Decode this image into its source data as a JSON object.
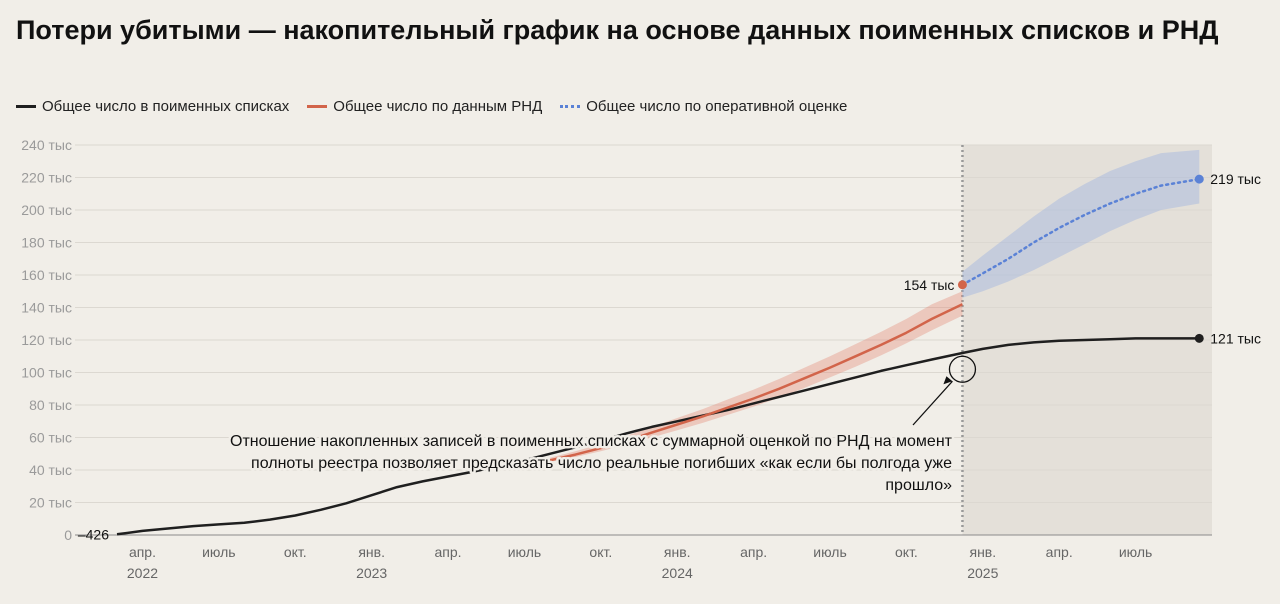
{
  "title": "Потери убитыми — накопительный график на основе данных поименных списков и РНД",
  "legend": [
    {
      "label": "Общее число в поименных списках",
      "color": "#1f1f1f",
      "style": "solid"
    },
    {
      "label": "Общее число по данным РНД",
      "color": "#d2644a",
      "style": "solid"
    },
    {
      "label": "Общее число по оперативной оценке",
      "color": "#5b82d6",
      "style": "dotted"
    }
  ],
  "chart_data": {
    "type": "line",
    "title": "Потери убитыми — накопительный график на основе данных поименных списков и РНД",
    "x_unit": "months since 2022-02",
    "xlim": [
      0,
      43
    ],
    "ylim": [
      0,
      240000
    ],
    "y_ticks": [
      {
        "value": 0,
        "label": "0"
      },
      {
        "value": 20000,
        "label": "20 тыс"
      },
      {
        "value": 40000,
        "label": "40 тыс"
      },
      {
        "value": 60000,
        "label": "60 тыс"
      },
      {
        "value": 80000,
        "label": "80 тыс"
      },
      {
        "value": 100000,
        "label": "100 тыс"
      },
      {
        "value": 120000,
        "label": "120 тыс"
      },
      {
        "value": 140000,
        "label": "140 тыс"
      },
      {
        "value": 160000,
        "label": "160 тыс"
      },
      {
        "value": 180000,
        "label": "180 тыс"
      },
      {
        "value": 200000,
        "label": "200 тыс"
      },
      {
        "value": 220000,
        "label": "220 тыс"
      },
      {
        "value": 240000,
        "label": "240 тыс"
      }
    ],
    "x_ticks": [
      {
        "value": 1,
        "label": "апр.",
        "year": "2022"
      },
      {
        "value": 4,
        "label": "июль",
        "year": ""
      },
      {
        "value": 7,
        "label": "окт.",
        "year": ""
      },
      {
        "value": 10,
        "label": "янв.",
        "year": "2023"
      },
      {
        "value": 13,
        "label": "апр.",
        "year": ""
      },
      {
        "value": 16,
        "label": "июль",
        "year": ""
      },
      {
        "value": 19,
        "label": "окт.",
        "year": ""
      },
      {
        "value": 22,
        "label": "янв.",
        "year": "2024"
      },
      {
        "value": 25,
        "label": "апр.",
        "year": ""
      },
      {
        "value": 28,
        "label": "июль",
        "year": ""
      },
      {
        "value": 31,
        "label": "окт.",
        "year": ""
      },
      {
        "value": 34,
        "label": "янв.",
        "year": "2025"
      },
      {
        "value": 37,
        "label": "апр.",
        "year": ""
      },
      {
        "value": 40,
        "label": "июль",
        "year": ""
      }
    ],
    "cutoff_x": 33.2,
    "series": [
      {
        "name": "Общее число в поименных списках",
        "color": "#1f1f1f",
        "style": "solid",
        "x": [
          0,
          1,
          2,
          3,
          4,
          5,
          6,
          7,
          8,
          9,
          10,
          11,
          12,
          13,
          14,
          15,
          16,
          17,
          18,
          19,
          20,
          21,
          22,
          23,
          24,
          25,
          26,
          27,
          28,
          29,
          30,
          31,
          32,
          33.2,
          34,
          35,
          36,
          37,
          38,
          39,
          40,
          41,
          42.5
        ],
        "values": [
          426,
          2500,
          4000,
          5500,
          6500,
          7500,
          9500,
          12000,
          15500,
          19500,
          24500,
          29500,
          33000,
          36000,
          39000,
          42500,
          46000,
          50000,
          54000,
          58000,
          62500,
          66500,
          70000,
          73500,
          77000,
          81000,
          85000,
          89000,
          93000,
          97000,
          101000,
          104500,
          108000,
          112000,
          114500,
          117000,
          118500,
          119500,
          120000,
          120500,
          121000,
          121000,
          121000
        ]
      },
      {
        "name": "Общее число по данным РНД",
        "color": "#d2644a",
        "style": "solid",
        "x": [
          17,
          18,
          19,
          20,
          21,
          22,
          23,
          24,
          25,
          26,
          27,
          28,
          29,
          30,
          31,
          32,
          33.2
        ],
        "values": [
          46000,
          49500,
          53500,
          58000,
          63000,
          68000,
          73000,
          78500,
          84000,
          90000,
          96500,
          103000,
          110000,
          117000,
          124500,
          133000,
          142000
        ],
        "band_low": [
          45000,
          48000,
          51500,
          55500,
          60000,
          64500,
          69000,
          74000,
          79000,
          84500,
          90500,
          97000,
          103500,
          110500,
          118000,
          126000,
          135000
        ],
        "band_high": [
          47500,
          51500,
          56000,
          61000,
          66500,
          72000,
          77500,
          83500,
          89500,
          96000,
          103000,
          110000,
          117500,
          125000,
          133000,
          142000,
          150000
        ]
      },
      {
        "name": "Общее число по оперативной оценке",
        "color": "#5b82d6",
        "style": "dotted",
        "x": [
          33.2,
          34,
          35,
          36,
          37,
          38,
          39,
          40,
          41,
          42.5
        ],
        "values": [
          154000,
          161000,
          170000,
          180000,
          189000,
          197000,
          204000,
          210000,
          215000,
          219000
        ],
        "band_low": [
          146000,
          150000,
          156000,
          163000,
          171000,
          179000,
          187000,
          194000,
          200000,
          204000
        ],
        "band_high": [
          162000,
          172000,
          184000,
          196000,
          207000,
          216000,
          224000,
          230000,
          235000,
          237000
        ]
      }
    ],
    "end_labels": [
      {
        "text": "219 тыс",
        "x": 42.5,
        "y": 219000,
        "color": "#5b82d6",
        "side": "right"
      },
      {
        "text": "121 тыс",
        "x": 42.5,
        "y": 121000,
        "color": "#1f1f1f",
        "side": "right"
      },
      {
        "text": "154 тыс",
        "x": 33.2,
        "y": 154000,
        "color": "#d2644a",
        "side": "left"
      },
      {
        "text": "–426",
        "x": 0,
        "y": 426,
        "color": "#1f1f1f",
        "side": "left"
      }
    ],
    "annotation": {
      "lines": [
        "Отношение накопленных записей в поименных списках с суммарной оценкой по РНД на момент",
        "полноты реестра позволяет предсказать число реальные погибших «как если бы полгода уже",
        "прошло»"
      ],
      "target_x": 33.2,
      "target_y": 102000
    }
  }
}
